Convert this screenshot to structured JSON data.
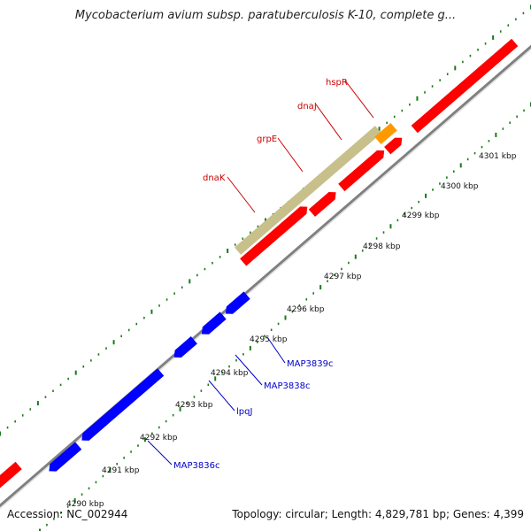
{
  "title": "Mycobacterium avium subsp. paratuberculosis K-10, complete g...",
  "footer": {
    "accession": "Accession: NC_002944",
    "summary": "Topology: circular; Length: 4,829,781 bp; Genes: 4,399"
  },
  "colors": {
    "forward_gene": "#ff0000",
    "reverse_gene": "#0000ff",
    "operon": "#c8c08a",
    "highlight": "#ff9900",
    "backbone": "#808080",
    "ticks": "#1a7a1a",
    "forward_label": "#cc0000",
    "reverse_label": "#0000cc"
  },
  "kbp_labels": [
    "4290 kbp",
    "4291 kbp",
    "4292 kbp",
    "4293 kbp",
    "4294 kbp",
    "4295 kbp",
    "4296 kbp",
    "4297 kbp",
    "4298 kbp",
    "4299 kbp",
    "4300 kbp",
    "4301 kbp"
  ],
  "forward_genes": [
    {
      "id": "fwd-gene-edge-left"
    },
    {
      "id": "dnaK"
    },
    {
      "id": "grpE"
    },
    {
      "id": "dnaJ"
    },
    {
      "id": "hspR"
    },
    {
      "id": "fwd-gene-edge-right"
    }
  ],
  "reverse_genes": [
    {
      "id": "MAP3836c"
    },
    {
      "id": "rev-gene-large"
    },
    {
      "id": "lpqJ"
    },
    {
      "id": "MAP3838c"
    },
    {
      "id": "MAP3839c"
    }
  ],
  "forward_labels": [
    "dnaK",
    "grpE",
    "dnaJ",
    "hspR"
  ],
  "reverse_labels": [
    "MAP3836c",
    "lpqJ",
    "MAP3838c",
    "MAP3839c"
  ]
}
